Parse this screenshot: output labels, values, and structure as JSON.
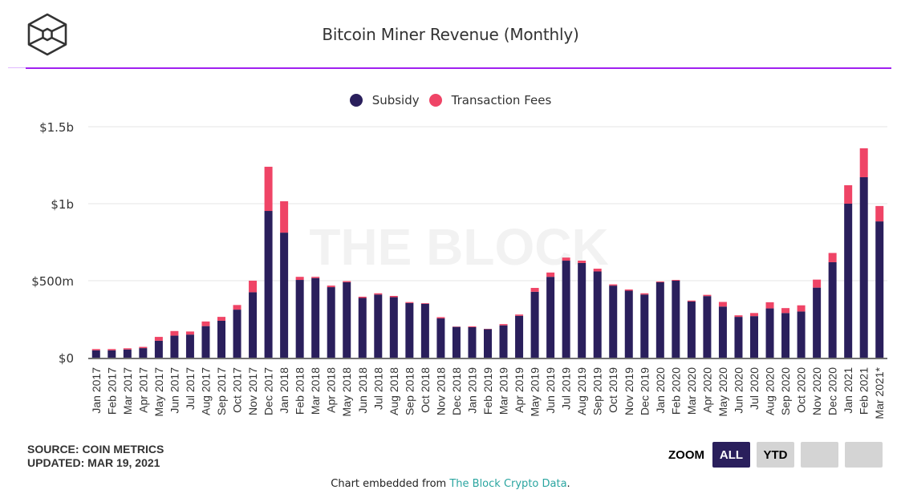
{
  "header": {
    "logo_icon": "the-block-cube-logo-icon",
    "title": "Bitcoin Miner Revenue (Monthly)"
  },
  "colors": {
    "subsidy": "#2a1f5c",
    "fees": "#ef4466",
    "accent_rule": "#a020f0",
    "gridline": "#e6e6e6",
    "watermark": "#f2f2f2",
    "link": "#2aa5a0"
  },
  "legend": [
    {
      "label": "Subsidy",
      "color": "#2a1f5c"
    },
    {
      "label": "Transaction Fees",
      "color": "#ef4466"
    }
  ],
  "watermark": "THE BLOCK",
  "footer": {
    "source": "SOURCE: COIN METRICS",
    "updated": "UPDATED: MAR 19, 2021",
    "zoom_label": "ZOOM",
    "zoom_buttons": [
      {
        "label": "ALL",
        "active": true
      },
      {
        "label": "YTD",
        "active": false
      },
      {
        "label": "",
        "active": false
      },
      {
        "label": "",
        "active": false
      }
    ],
    "embed_prefix": "Chart embedded from ",
    "embed_link": "The Block Crypto Data",
    "embed_suffix": "."
  },
  "chart_data": {
    "type": "bar",
    "stacked": true,
    "title": "Bitcoin Miner Revenue (Monthly)",
    "xlabel": "",
    "ylabel": "",
    "units": "USD millions",
    "ylim": [
      0,
      1500
    ],
    "yticks": [
      0,
      500,
      1000,
      1500
    ],
    "ytick_labels": [
      "$0",
      "$500m",
      "$1b",
      "$1.5b"
    ],
    "grid": true,
    "legend_position": "top-center",
    "categories": [
      "Jan 2017",
      "Feb 2017",
      "Mar 2017",
      "Apr 2017",
      "May 2017",
      "Jun 2017",
      "Jul 2017",
      "Aug 2017",
      "Sep 2017",
      "Oct 2017",
      "Nov 2017",
      "Dec 2017",
      "Jan 2018",
      "Feb 2018",
      "Mar 2018",
      "Apr 2018",
      "May 2018",
      "Jun 2018",
      "Jul 2018",
      "Aug 2018",
      "Sep 2018",
      "Oct 2018",
      "Nov 2018",
      "Dec 2018",
      "Jan 2019",
      "Feb 2019",
      "Mar 2019",
      "Apr 2019",
      "May 2019",
      "Jun 2019",
      "Jul 2019",
      "Aug 2019",
      "Sep 2019",
      "Oct 2019",
      "Nov 2019",
      "Dec 2019",
      "Jan 2020",
      "Feb 2020",
      "Mar 2020",
      "Apr 2020",
      "May 2020",
      "Jun 2020",
      "Jul 2020",
      "Aug 2020",
      "Sep 2020",
      "Oct 2020",
      "Nov 2020",
      "Dec 2020",
      "Jan 2021",
      "Feb 2021",
      "Mar 2021*"
    ],
    "series": [
      {
        "name": "Subsidy",
        "color": "#2a1f5c",
        "values": [
          48,
          48,
          53,
          62,
          110,
          143,
          150,
          205,
          240,
          312,
          425,
          953,
          812,
          505,
          517,
          458,
          490,
          388,
          410,
          393,
          355,
          350,
          255,
          200,
          198,
          185,
          210,
          272,
          428,
          525,
          630,
          615,
          560,
          468,
          435,
          410,
          490,
          500,
          365,
          400,
          332,
          265,
          270,
          320,
          290,
          300,
          455,
          620,
          1000,
          1172,
          885
        ]
      },
      {
        "name": "Transaction Fees",
        "color": "#ef4466",
        "values": [
          8,
          8,
          8,
          8,
          25,
          30,
          20,
          30,
          25,
          30,
          75,
          287,
          204,
          20,
          8,
          10,
          7,
          8,
          8,
          8,
          6,
          4,
          8,
          2,
          5,
          2,
          8,
          8,
          25,
          28,
          20,
          15,
          18,
          8,
          8,
          8,
          5,
          5,
          6,
          8,
          30,
          10,
          20,
          40,
          32,
          40,
          52,
          60,
          120,
          188,
          100
        ]
      }
    ]
  }
}
